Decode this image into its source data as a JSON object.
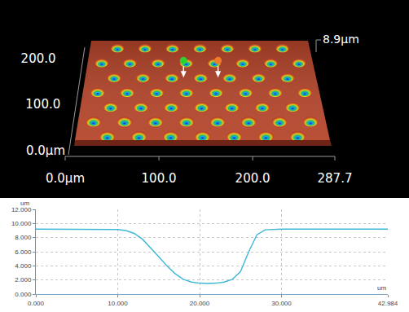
{
  "chart_data": [
    {
      "type": "surface",
      "color": "#b4442a",
      "xlim": [
        0,
        287.7
      ],
      "xticks": [
        {
          "value": 0,
          "label": "0.0µm"
        },
        {
          "value": 100,
          "label": "100.0"
        },
        {
          "value": 200,
          "label": "200.0"
        },
        {
          "value": 287.7,
          "label": "287.7"
        }
      ],
      "ylim": [
        0,
        210
      ],
      "yticks": [
        {
          "value": 0,
          "label": "0.0µm"
        },
        {
          "value": 100,
          "label": "100.0"
        },
        {
          "value": 200,
          "label": "200.0"
        }
      ],
      "zlim": [
        0,
        8.9
      ],
      "zticks": [
        {
          "value": 8.9,
          "label": "8.9µm"
        }
      ],
      "pits": {
        "x": [
          36,
          72,
          108,
          144,
          180,
          216,
          252,
          18,
          54,
          90,
          126,
          162,
          198,
          234,
          270,
          36,
          72,
          108,
          144,
          180,
          216,
          252,
          18,
          54,
          90,
          126,
          162,
          198,
          234,
          270,
          36,
          72,
          108,
          144,
          180,
          216,
          252,
          18,
          54,
          90,
          126,
          162,
          198,
          234,
          270,
          36,
          72,
          108,
          144,
          180,
          216,
          252
        ],
        "y": [
          8,
          8,
          8,
          8,
          8,
          8,
          8,
          39,
          39,
          39,
          39,
          39,
          39,
          39,
          39,
          70,
          70,
          70,
          70,
          70,
          70,
          70,
          101,
          101,
          101,
          101,
          101,
          101,
          101,
          101,
          132,
          132,
          132,
          132,
          132,
          132,
          132,
          163,
          163,
          163,
          163,
          163,
          163,
          163,
          163,
          194,
          194,
          194,
          194,
          194,
          194,
          194
        ]
      },
      "cursors": [
        {
          "x": 122.5,
          "y": 132,
          "color": "#2fd12f"
        },
        {
          "x": 165.5,
          "y": 132,
          "color": "#f07a28"
        }
      ]
    },
    {
      "type": "line",
      "color": "#3fb8d8",
      "x": [
        0,
        9,
        10,
        11,
        12,
        13,
        14,
        15,
        16,
        17,
        18,
        19,
        20,
        21,
        22,
        23,
        24,
        25,
        26,
        27,
        28,
        29,
        30,
        42.984
      ],
      "values": [
        9.2,
        9.2,
        9.15,
        9.0,
        8.6,
        7.8,
        6.6,
        5.3,
        4.0,
        2.9,
        2.1,
        1.7,
        1.55,
        1.5,
        1.55,
        1.7,
        2.1,
        3.2,
        6.0,
        8.4,
        9.1,
        9.15,
        9.2,
        9.2
      ],
      "xlim": [
        0,
        42.984
      ],
      "xticks": [
        {
          "value": 0,
          "label": "0.000"
        },
        {
          "value": 10,
          "label": "10.000"
        },
        {
          "value": 20,
          "label": "20.000"
        },
        {
          "value": 30,
          "label": "30.000"
        },
        {
          "value": 42.984,
          "label": "42.984"
        }
      ],
      "ylim": [
        0,
        12
      ],
      "yticks": [
        {
          "value": 0,
          "label": "0.000"
        },
        {
          "value": 2,
          "label": "2.000"
        },
        {
          "value": 4,
          "label": "4.000"
        },
        {
          "value": 6,
          "label": "6.000"
        },
        {
          "value": 8,
          "label": "8.000"
        },
        {
          "value": 10,
          "label": "10.000"
        },
        {
          "value": 12,
          "label": "12.000"
        }
      ],
      "xlabel": "um",
      "ylabel": "um",
      "grid": true
    }
  ]
}
